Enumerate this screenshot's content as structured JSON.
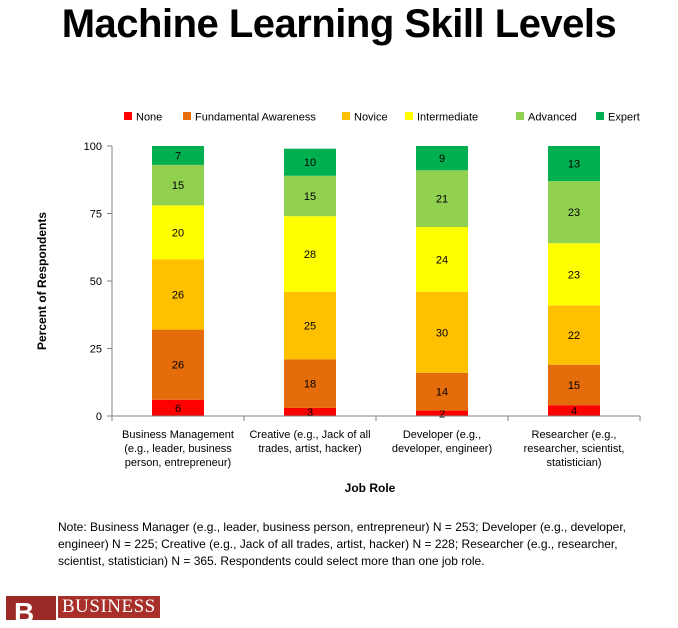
{
  "title": "Machine Learning Skill Levels",
  "note": "Note: Business Manager (e.g., leader, business person, entrepreneur) N = 253; Developer (e.g., developer, engineer) N = 225; Creative (e.g., Jack of all trades, artist, hacker) N = 228; Researcher (e.g., researcher, scientist, statistician) N = 365. Respondents could select more than one job role.",
  "brand": {
    "text": "BUSINESS",
    "mark": "B"
  },
  "chart_data": {
    "type": "bar",
    "stacked": true,
    "xlabel": "Job Role",
    "ylabel": "Percent of Respondents",
    "ylim": [
      0,
      100
    ],
    "yticks": [
      0,
      25,
      50,
      75,
      100
    ],
    "grid": false,
    "legend_position": "top",
    "categories": [
      "Business Management (e.g., leader, business person, entrepreneur)",
      "Creative (e.g., Jack of all trades, artist, hacker)",
      "Developer (e.g., developer, engineer)",
      "Researcher (e.g., researcher, scientist, statistician)"
    ],
    "category_lines": [
      [
        "Business Management",
        "(e.g., leader, business",
        "person, entrepreneur)"
      ],
      [
        "Creative (e.g., Jack of all",
        "trades, artist, hacker)"
      ],
      [
        "Developer (e.g.,",
        "developer, engineer)"
      ],
      [
        "Researcher (e.g.,",
        "researcher, scientist,",
        "statistician)"
      ]
    ],
    "series": [
      {
        "name": "None",
        "color": "#ff0000",
        "values": [
          6,
          3,
          2,
          4
        ]
      },
      {
        "name": "Fundamental Awareness",
        "color": "#e46c0a",
        "values": [
          26,
          18,
          14,
          15
        ]
      },
      {
        "name": "Novice",
        "color": "#ffc000",
        "values": [
          26,
          25,
          30,
          22
        ]
      },
      {
        "name": "Intermediate",
        "color": "#ffff00",
        "values": [
          20,
          28,
          24,
          23
        ]
      },
      {
        "name": "Advanced",
        "color": "#92d050",
        "values": [
          15,
          15,
          21,
          23
        ]
      },
      {
        "name": "Expert",
        "color": "#00b050",
        "values": [
          7,
          10,
          9,
          13
        ]
      }
    ]
  }
}
